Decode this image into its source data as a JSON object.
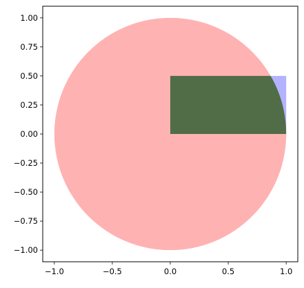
{
  "chart_data": {
    "type": "area",
    "title": "",
    "xlabel": "",
    "ylabel": "",
    "xlim": [
      -1.1,
      1.1
    ],
    "ylim": [
      -1.1,
      1.1
    ],
    "aspect": "equal",
    "grid": false,
    "legend": "none",
    "x_ticks": [
      -1.0,
      -0.5,
      0.0,
      0.5,
      1.0
    ],
    "x_tick_labels": [
      "−1.0",
      "−0.5",
      "0.0",
      "0.5",
      "1.0"
    ],
    "y_ticks": [
      1.0,
      0.75,
      0.5,
      0.25,
      0.0,
      -0.25,
      -0.5,
      -0.75,
      -1.0
    ],
    "y_tick_labels": [
      "1.00",
      "0.75",
      "0.50",
      "0.25",
      "0.00",
      "−0.25",
      "−0.50",
      "−0.75",
      "−1.00"
    ],
    "shapes": [
      {
        "kind": "rectangle",
        "x": 0.0,
        "y": 0.0,
        "width": 1.0,
        "height": 0.5,
        "color": "#0000ff",
        "alpha": 0.3
      },
      {
        "kind": "circle",
        "center": [
          0.0,
          0.0
        ],
        "radius": 1.0,
        "color": "#ff0000",
        "alpha": 0.3
      },
      {
        "kind": "intersection",
        "description_shapes": [
          "rectangle",
          "circle"
        ],
        "color": "#006400",
        "alpha": 0.6
      }
    ]
  }
}
